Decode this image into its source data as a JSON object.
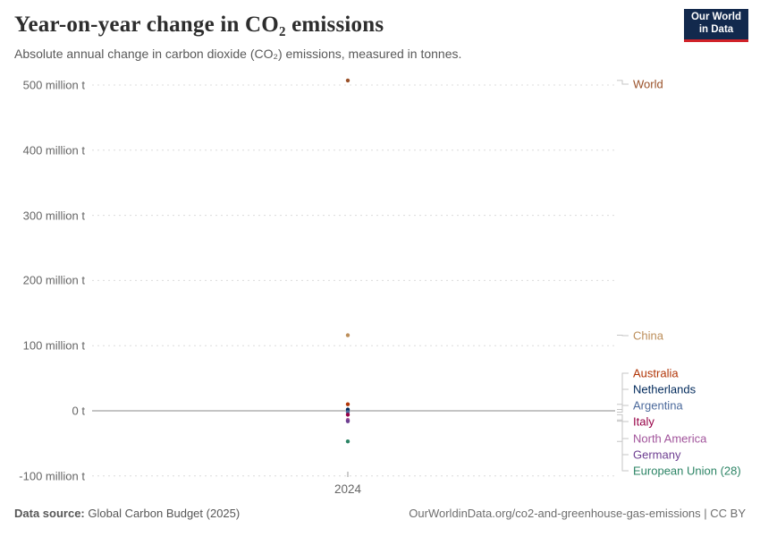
{
  "header": {
    "title": "Year-on-year change in CO₂ emissions",
    "subtitle": "Absolute annual change in carbon dioxide (CO₂) emissions, measured in tonnes."
  },
  "logo": {
    "line1": "Our World",
    "line2": "in Data",
    "bg_color": "#12294D",
    "accent_color": "#D12229"
  },
  "footer": {
    "source_label": "Data source:",
    "source_value": "Global Carbon Budget (2025)",
    "right_text": "OurWorldinData.org/co2-and-greenhouse-gas-emissions | CC BY"
  },
  "chart_data": {
    "type": "scatter",
    "title": "Year-on-year change in CO₂ emissions",
    "unit": "million tonnes of CO₂ (year-on-year change)",
    "xlabel": "",
    "ylabel": "",
    "ylim": [
      -100,
      500
    ],
    "grid": true,
    "legend_position": "right-labels",
    "x_ticks": [
      "2024"
    ],
    "y_ticks": [
      {
        "value": 500,
        "label": "500 million t"
      },
      {
        "value": 400,
        "label": "400 million t"
      },
      {
        "value": 300,
        "label": "300 million t"
      },
      {
        "value": 200,
        "label": "200 million t"
      },
      {
        "value": 100,
        "label": "100 million t"
      },
      {
        "value": 0,
        "label": "0 t"
      },
      {
        "value": -100,
        "label": "-100 million t"
      }
    ],
    "x": [
      2024
    ],
    "series": [
      {
        "name": "World",
        "value": 507,
        "color": "#9A5129"
      },
      {
        "name": "China",
        "value": 116,
        "color": "#BC8E5A"
      },
      {
        "name": "Australia",
        "value": 10,
        "color": "#B13507"
      },
      {
        "name": "Netherlands",
        "value": 2,
        "color": "#00295B"
      },
      {
        "name": "Argentina",
        "value": -2,
        "color": "#4C6A9C"
      },
      {
        "name": "Italy",
        "value": -6,
        "color": "#970046"
      },
      {
        "name": "North America",
        "value": -14,
        "color": "#A2559C"
      },
      {
        "name": "Germany",
        "value": -16,
        "color": "#6D3E91"
      },
      {
        "name": "European Union (28)",
        "value": -47,
        "color": "#2C8465"
      }
    ],
    "colors": {
      "gridline": "#dcdcdc",
      "zero_line": "#8a8a8a",
      "connector": "#c6c6c6"
    }
  }
}
